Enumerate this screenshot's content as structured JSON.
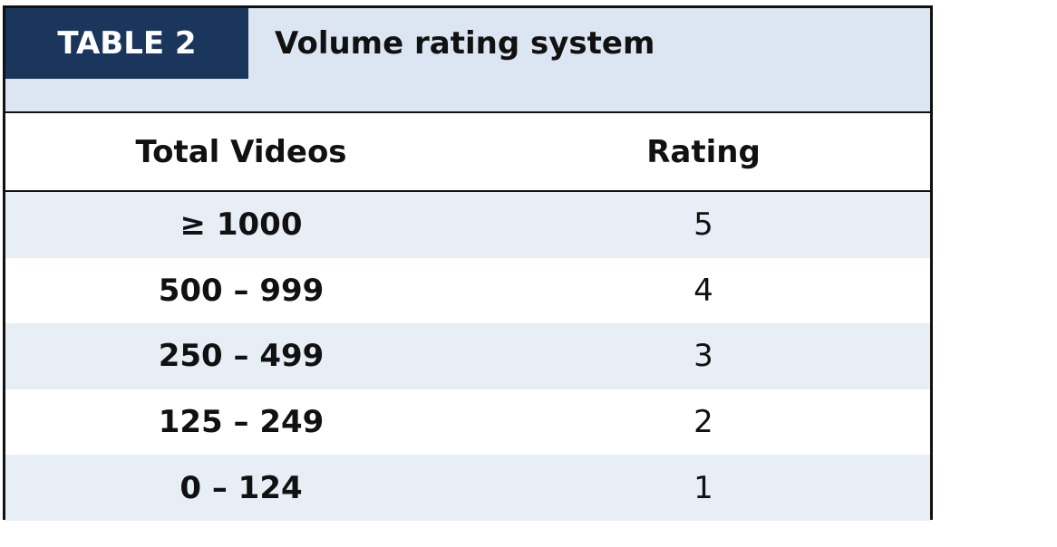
{
  "header": {
    "label": "TABLE 2",
    "title": "Volume rating system"
  },
  "table": {
    "columns": [
      "Total Videos",
      "Rating"
    ],
    "rows": [
      [
        "≥ 1000",
        5
      ],
      [
        "500 – 999",
        4
      ],
      [
        "250 – 499",
        3
      ],
      [
        "125 – 249",
        2
      ],
      [
        "0 – 124",
        1
      ]
    ]
  }
}
